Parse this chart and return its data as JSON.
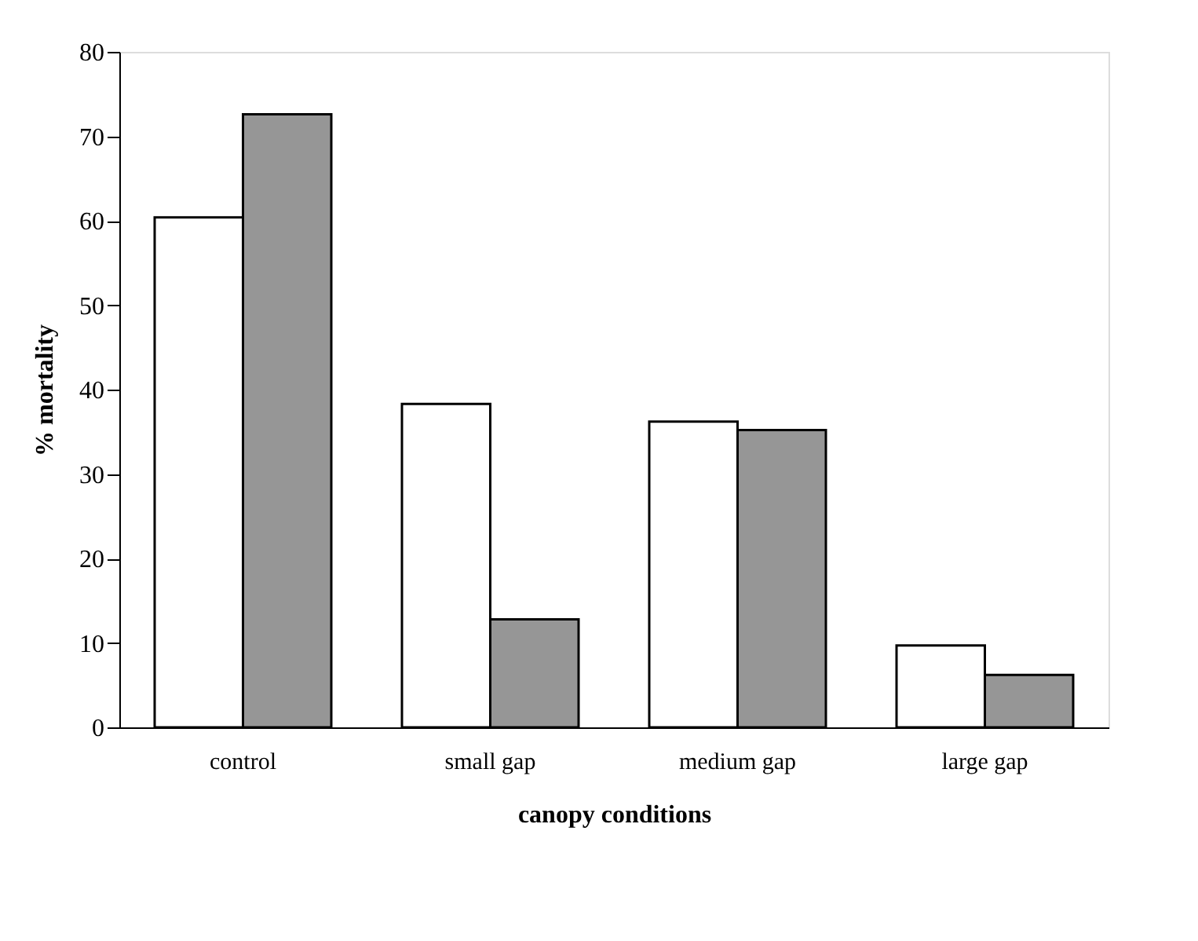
{
  "chart_data": {
    "type": "bar",
    "xlabel": "canopy conditions",
    "ylabel": "% mortality",
    "categories": [
      "control",
      "small gap",
      "medium gap",
      "large gap"
    ],
    "series": [
      {
        "color": "#ffffff",
        "values": [
          60.4,
          38.3,
          36.2,
          9.7
        ]
      },
      {
        "color": "#969696",
        "values": [
          72.6,
          12.8,
          35.2,
          6.2
        ]
      }
    ],
    "ylim": [
      0,
      80
    ],
    "yticks": [
      0,
      10,
      20,
      30,
      40,
      50,
      60,
      70,
      80
    ],
    "grid": false
  }
}
